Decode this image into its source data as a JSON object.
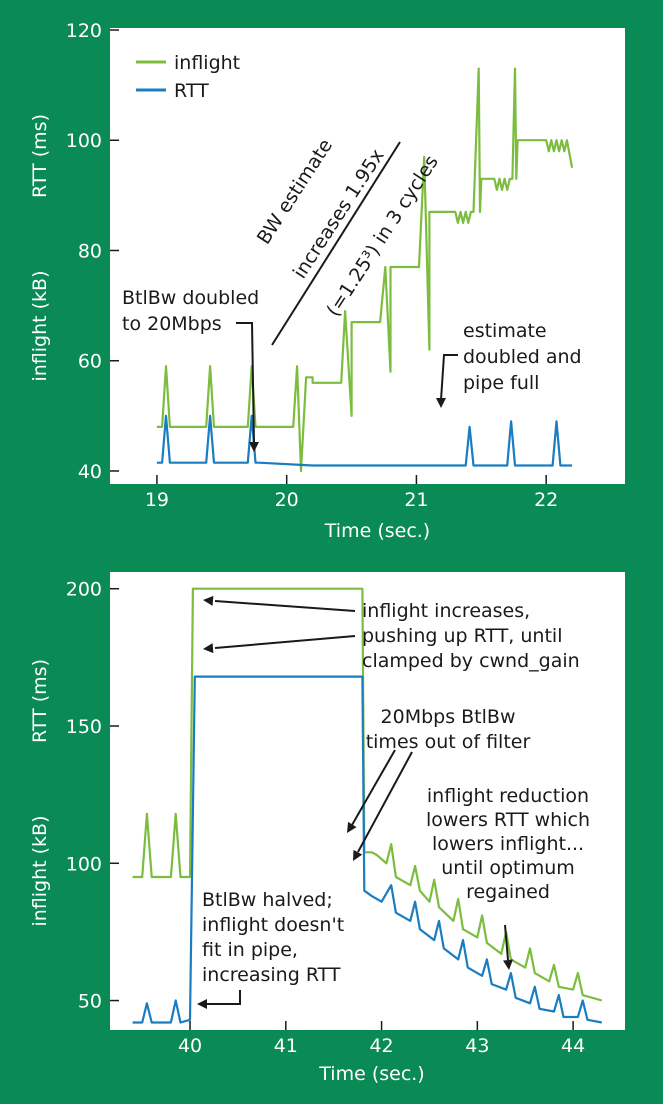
{
  "colors": {
    "background": "#0a8a55",
    "panel": "#ffffff",
    "inflight": "#7cbd3f",
    "rtt": "#1a7cc1",
    "text": "#1a1a1a",
    "axis_text": "#ffffff"
  },
  "chart_data": [
    {
      "type": "line",
      "title": "",
      "xlabel": "Time (sec.)",
      "ylabel_top": "RTT (ms)",
      "ylabel_bottom": "inflight (kB)",
      "xlim": [
        18.8,
        22.6
      ],
      "ylim": [
        38,
        120
      ],
      "xticks": [
        19,
        20,
        21,
        22
      ],
      "xtick_labels": [
        "19",
        "20",
        "21",
        "22"
      ],
      "yticks": [
        40,
        60,
        80,
        100,
        120
      ],
      "ytick_labels": [
        "40",
        "60",
        "80",
        "100",
        "120"
      ],
      "legend": {
        "position": "top-left",
        "entries": [
          {
            "name": "inflight",
            "color": "#7cbd3f"
          },
          {
            "name": "RTT",
            "color": "#1a7cc1"
          }
        ]
      },
      "series": [
        {
          "name": "inflight",
          "color": "#7cbd3f",
          "x": [
            19.0,
            19.04,
            19.07,
            19.1,
            19.13,
            19.38,
            19.41,
            19.44,
            19.47,
            19.7,
            19.73,
            19.76,
            19.79,
            20.05,
            20.08,
            20.11,
            20.15,
            20.2,
            20.2,
            20.42,
            20.45,
            20.5,
            20.5,
            20.72,
            20.76,
            20.8,
            20.8,
            21.02,
            21.06,
            21.1,
            21.1,
            21.3,
            21.3,
            21.32,
            21.34,
            21.36,
            21.38,
            21.4,
            21.42,
            21.44,
            21.48,
            21.49,
            21.5,
            21.6,
            21.62,
            21.64,
            21.66,
            21.68,
            21.7,
            21.72,
            21.74,
            21.76,
            21.77,
            21.78,
            22.0,
            22.02,
            22.04,
            22.06,
            22.08,
            22.1,
            22.12,
            22.14,
            22.16,
            22.2
          ],
          "values": [
            48,
            48,
            59,
            48,
            48,
            48,
            59,
            48,
            48,
            48,
            59,
            48,
            48,
            48,
            59,
            40,
            57,
            57,
            56,
            56,
            69,
            50,
            67,
            67,
            77,
            58,
            77,
            77,
            97,
            62,
            87,
            87,
            87,
            85,
            87,
            85,
            87,
            85,
            87,
            87,
            113,
            87,
            93,
            93,
            91,
            93,
            91,
            93,
            91,
            93,
            93,
            113,
            93,
            100,
            100,
            98,
            100,
            98,
            100,
            98,
            100,
            98,
            100,
            95
          ]
        },
        {
          "name": "RTT",
          "color": "#1a7cc1",
          "x": [
            19.0,
            19.04,
            19.07,
            19.1,
            19.13,
            19.38,
            19.41,
            19.44,
            19.47,
            19.7,
            19.73,
            19.76,
            19.79,
            20.2,
            21.35,
            21.38,
            21.41,
            21.44,
            21.47,
            21.7,
            21.73,
            21.76,
            21.79,
            22.05,
            22.08,
            22.11,
            22.14,
            22.2
          ],
          "values": [
            41.5,
            41.5,
            50,
            41.5,
            41.5,
            41.5,
            50,
            41.5,
            41.5,
            41.5,
            50,
            41.5,
            41.5,
            41,
            41,
            41,
            48,
            41,
            41,
            41,
            49,
            41,
            41,
            41,
            49,
            41,
            41,
            41
          ]
        }
      ],
      "annotations": [
        {
          "id": "bw-estimate",
          "lines": [
            "BW estimate",
            "increases 1.95x",
            "(=1.25³) in 3 cycles"
          ]
        },
        {
          "id": "btlbw-doubled",
          "lines": [
            "BtlBw doubled",
            "to 20Mbps"
          ]
        },
        {
          "id": "estimate-doubled",
          "lines": [
            "estimate",
            "doubled and",
            "pipe full"
          ]
        }
      ]
    },
    {
      "type": "line",
      "title": "",
      "xlabel": "Time (sec.)",
      "ylabel_top": "RTT (ms)",
      "ylabel_bottom": "inflight (kB)",
      "xlim": [
        39.3,
        44.5
      ],
      "ylim": [
        40,
        205
      ],
      "xticks": [
        40,
        41,
        42,
        43,
        44
      ],
      "xtick_labels": [
        "40",
        "41",
        "42",
        "43",
        "44"
      ],
      "yticks": [
        50,
        100,
        150,
        200
      ],
      "ytick_labels": [
        "50",
        "100",
        "150",
        "200"
      ],
      "series": [
        {
          "name": "inflight",
          "color": "#7cbd3f",
          "x": [
            39.4,
            39.5,
            39.55,
            39.6,
            39.7,
            39.8,
            39.85,
            39.9,
            40.0,
            40.03,
            40.1,
            41.8,
            41.82,
            41.9,
            41.95,
            42.05,
            42.1,
            42.15,
            42.3,
            42.35,
            42.4,
            42.5,
            42.55,
            42.6,
            42.75,
            42.8,
            42.85,
            43.0,
            43.05,
            43.1,
            43.25,
            43.3,
            43.35,
            43.5,
            43.55,
            43.6,
            43.75,
            43.8,
            43.85,
            44.0,
            44.05,
            44.1,
            44.3
          ],
          "values": [
            95,
            95,
            118,
            95,
            95,
            95,
            118,
            95,
            95,
            200,
            200,
            200,
            104,
            104,
            103,
            100,
            107,
            95,
            92,
            99,
            90,
            86,
            94,
            84,
            79,
            87,
            76,
            73,
            81,
            71,
            67,
            75,
            65,
            62,
            69,
            60,
            57,
            63,
            55,
            54,
            60,
            52,
            50
          ]
        },
        {
          "name": "RTT",
          "color": "#1a7cc1",
          "x": [
            39.4,
            39.5,
            39.55,
            39.6,
            39.8,
            39.85,
            39.9,
            40.0,
            40.05,
            40.1,
            41.8,
            41.82,
            41.9,
            42.0,
            42.1,
            42.15,
            42.3,
            42.35,
            42.4,
            42.55,
            42.6,
            42.65,
            42.8,
            42.85,
            42.9,
            43.05,
            43.1,
            43.15,
            43.3,
            43.35,
            43.4,
            43.55,
            43.6,
            43.65,
            43.8,
            43.85,
            43.9,
            44.05,
            44.1,
            44.15,
            44.3
          ],
          "values": [
            42,
            42,
            49,
            42,
            42,
            50,
            42,
            43,
            168,
            168,
            168,
            90,
            88,
            86,
            92,
            82,
            79,
            86,
            76,
            72,
            79,
            69,
            65,
            72,
            62,
            59,
            65,
            56,
            54,
            60,
            51,
            49,
            55,
            47,
            46,
            52,
            44,
            44,
            50,
            43,
            42
          ]
        }
      ],
      "annotations": [
        {
          "id": "inflight-increases",
          "lines": [
            "inflight increases,",
            "pushing up RTT, until",
            "clamped by cwnd_gain"
          ]
        },
        {
          "id": "btlbw-times-out",
          "lines": [
            "20Mbps BtlBw",
            "times out of filter"
          ]
        },
        {
          "id": "inflight-reduction",
          "lines": [
            "inflight reduction",
            "lowers RTT which",
            "lowers inflight...",
            "until optimum",
            "regained"
          ]
        },
        {
          "id": "btlbw-halved",
          "lines": [
            "BtlBw halved;",
            "inflight doesn't",
            "fit in pipe,",
            "increasing RTT"
          ]
        }
      ]
    }
  ]
}
